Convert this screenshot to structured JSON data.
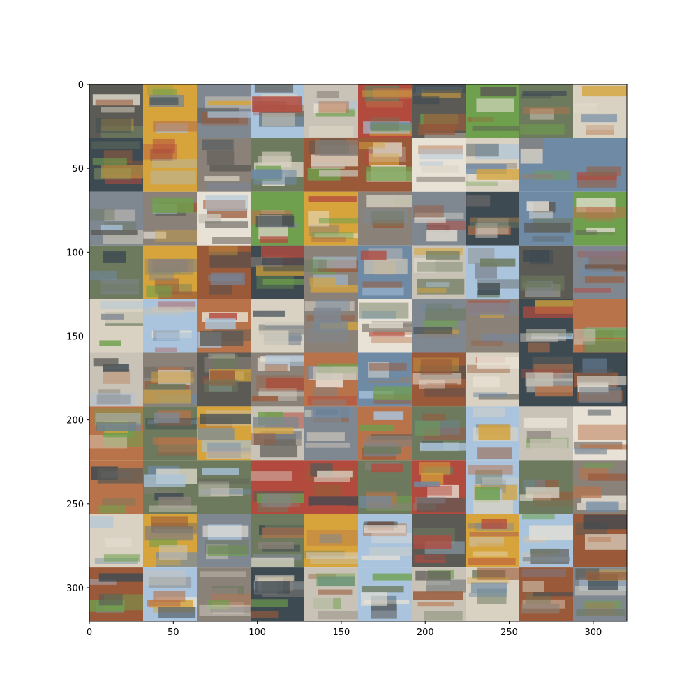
{
  "axes": {
    "x_range": [
      0,
      320
    ],
    "y_range": [
      0,
      320
    ],
    "y_inverted": true,
    "x_ticks": [
      0,
      50,
      100,
      150,
      200,
      250,
      300
    ],
    "y_ticks": [
      0,
      50,
      100,
      150,
      200,
      250,
      300
    ],
    "x_tick_labels": [
      "0",
      "50",
      "100",
      "150",
      "200",
      "250",
      "300"
    ],
    "y_tick_labels": [
      "0",
      "50",
      "100",
      "150",
      "200",
      "250",
      "300"
    ]
  },
  "image_grid": {
    "rows": 10,
    "cols": 10,
    "tile_size": 32,
    "description_free": true,
    "palette": [
      "#b8734a",
      "#8a8179",
      "#6d7a5e",
      "#c9c3b7",
      "#d9d2c3",
      "#b34a3e",
      "#7f8790",
      "#6f8aa5",
      "#a9c4dc",
      "#5b5a55",
      "#6fa04d",
      "#d6a43b",
      "#3e4a52",
      "#e8e2d6",
      "#9a5a3a"
    ]
  }
}
